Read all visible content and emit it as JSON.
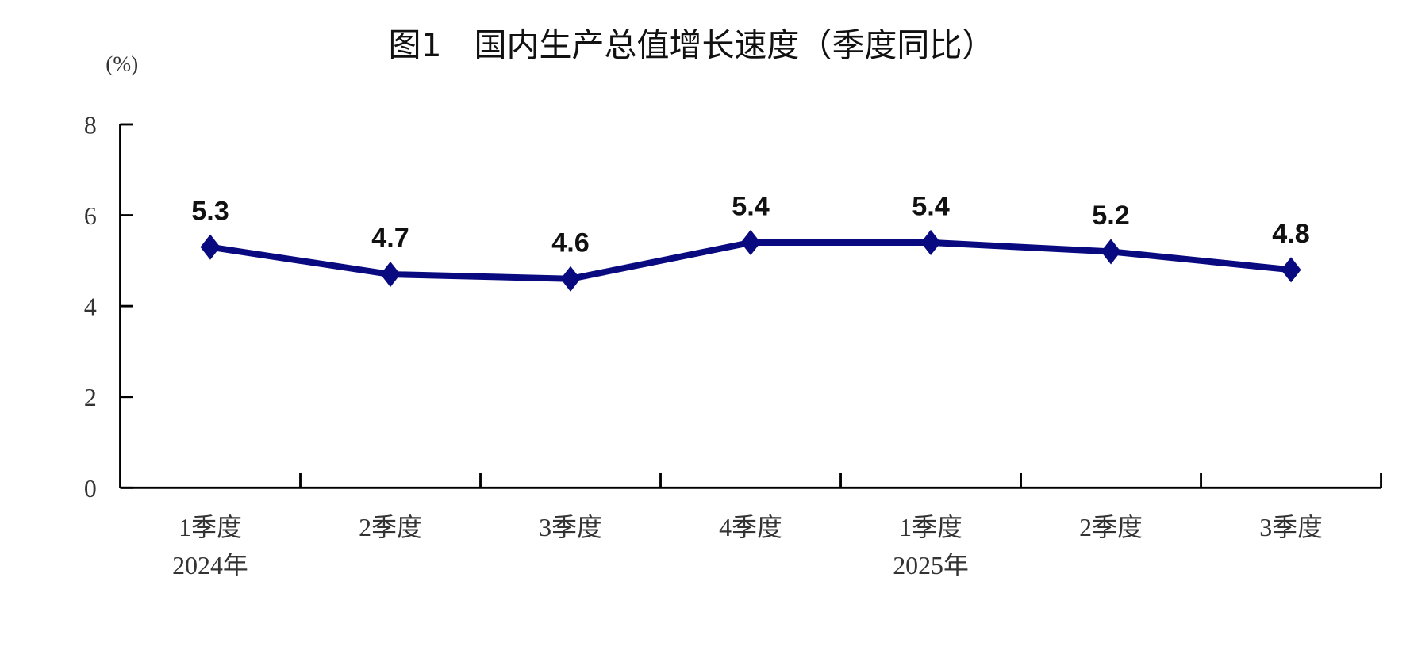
{
  "chart_data": {
    "type": "line",
    "title": "图1　国内生产总值增长速度（季度同比）",
    "ylabel": "(%)",
    "xlabel": "",
    "ylim": [
      0,
      8
    ],
    "yticks": [
      0,
      2,
      4,
      6,
      8
    ],
    "grid": false,
    "categories": [
      [
        "1季度",
        "2024年"
      ],
      [
        "2季度",
        ""
      ],
      [
        "3季度",
        ""
      ],
      [
        "4季度",
        ""
      ],
      [
        "1季度",
        "2025年"
      ],
      [
        "2季度",
        ""
      ],
      [
        "3季度",
        ""
      ]
    ],
    "values": [
      5.3,
      4.7,
      4.6,
      5.4,
      5.4,
      5.2,
      4.8
    ],
    "data_labels": [
      "5.3",
      "4.7",
      "4.6",
      "5.4",
      "5.4",
      "5.2",
      "4.8"
    ],
    "marker": "diamond",
    "line_color": "#0a0a80"
  }
}
